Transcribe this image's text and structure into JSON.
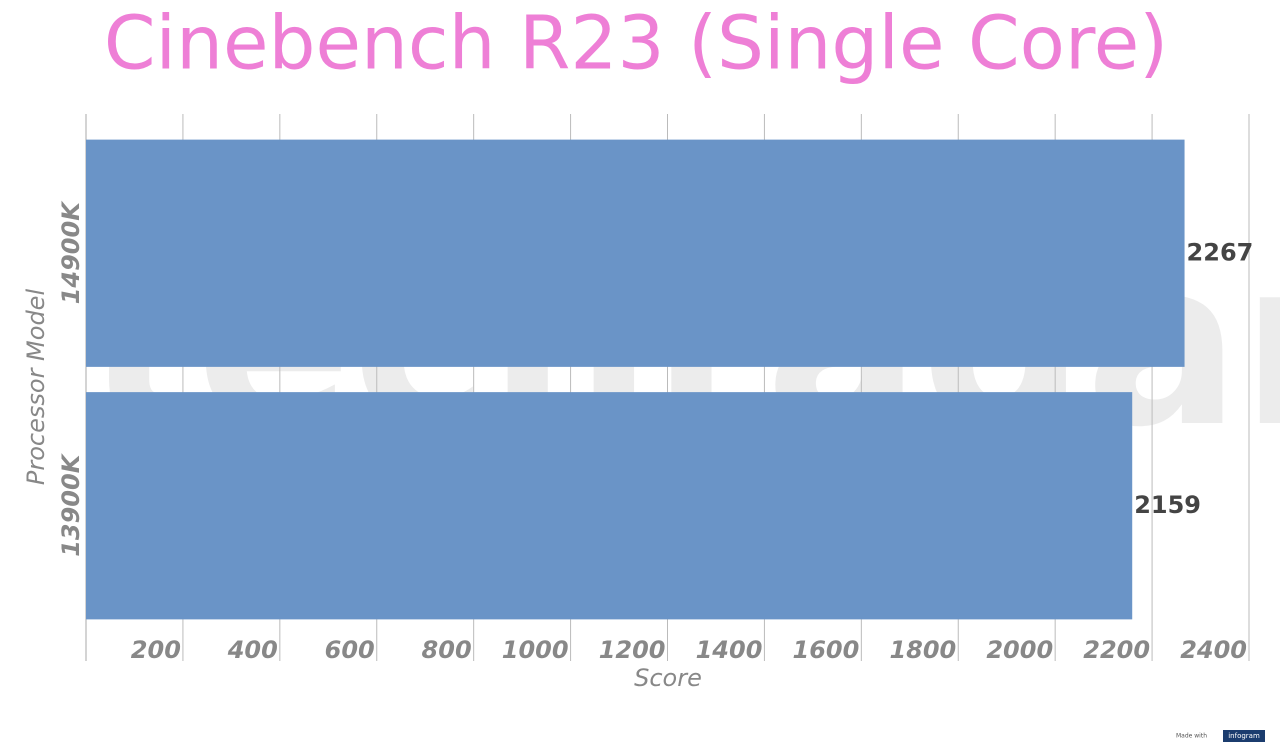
{
  "chart_data": {
    "type": "barh",
    "title": "Cinebench R23 (Single Core)",
    "categories": [
      "14900K",
      "13900K"
    ],
    "values": [
      2267,
      2159
    ],
    "color": "#6a94c7",
    "xlabel": "Score",
    "ylabel": "Processor Model",
    "xlim": [
      0,
      2400
    ],
    "xticks": [
      200,
      400,
      600,
      800,
      1000,
      1200,
      1400,
      1600,
      1800,
      2000,
      2200,
      2400
    ],
    "grid": true,
    "watermark": "techradar",
    "footer": "Made with",
    "footer_brand": "infogram"
  }
}
